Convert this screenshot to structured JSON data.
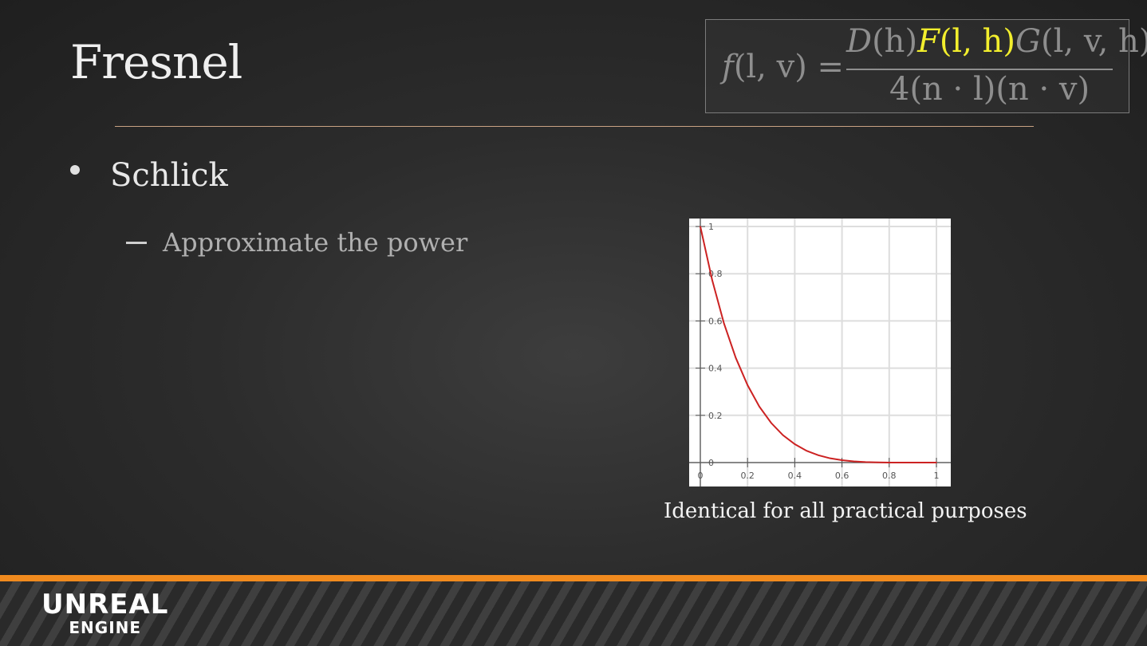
{
  "slide": {
    "title": "Fresnel",
    "bullet": "Schlick",
    "sub_bullet": "Approximate the power",
    "caption": "Identical for all practical purposes"
  },
  "formula": {
    "lhs_f": "f",
    "lhs_rest": "(l, v) =",
    "num_D": "D",
    "num_Dargs": "(h)",
    "num_F": "F",
    "num_Fargs": "(l, h)",
    "num_G": "G",
    "num_Gargs": "(l, v, h)",
    "denominator": "4(n · l)(n · v)",
    "highlight_color": "#f2ee2d"
  },
  "logo": {
    "line1": "UNREAL",
    "line2": "ENGINE"
  },
  "colors": {
    "accent": "#f08a1e",
    "rule": "#c9a283",
    "curve": "#cc2222"
  },
  "chart_data": {
    "type": "line",
    "title": "",
    "xlabel": "",
    "ylabel": "",
    "xlim": [
      0,
      1
    ],
    "ylim": [
      0,
      1
    ],
    "grid": true,
    "x_ticks": [
      "0",
      "0.2",
      "0.4",
      "0.6",
      "0.8",
      "1"
    ],
    "y_ticks": [
      "0",
      "0.2",
      "0.4",
      "0.6",
      "0.8",
      "1"
    ],
    "series": [
      {
        "x": [
          0,
          0.05,
          0.1,
          0.15,
          0.2,
          0.25,
          0.3,
          0.35,
          0.4,
          0.45,
          0.5,
          0.55,
          0.6,
          0.65,
          0.7,
          0.75,
          0.8,
          0.85,
          0.9,
          0.95,
          1
        ],
        "values": [
          1,
          0.774,
          0.59,
          0.444,
          0.328,
          0.237,
          0.168,
          0.116,
          0.078,
          0.05,
          0.031,
          0.018,
          0.01,
          0.005,
          0.002,
          0.001,
          0.0,
          0.0,
          0.0,
          0.0,
          0
        ]
      }
    ]
  }
}
